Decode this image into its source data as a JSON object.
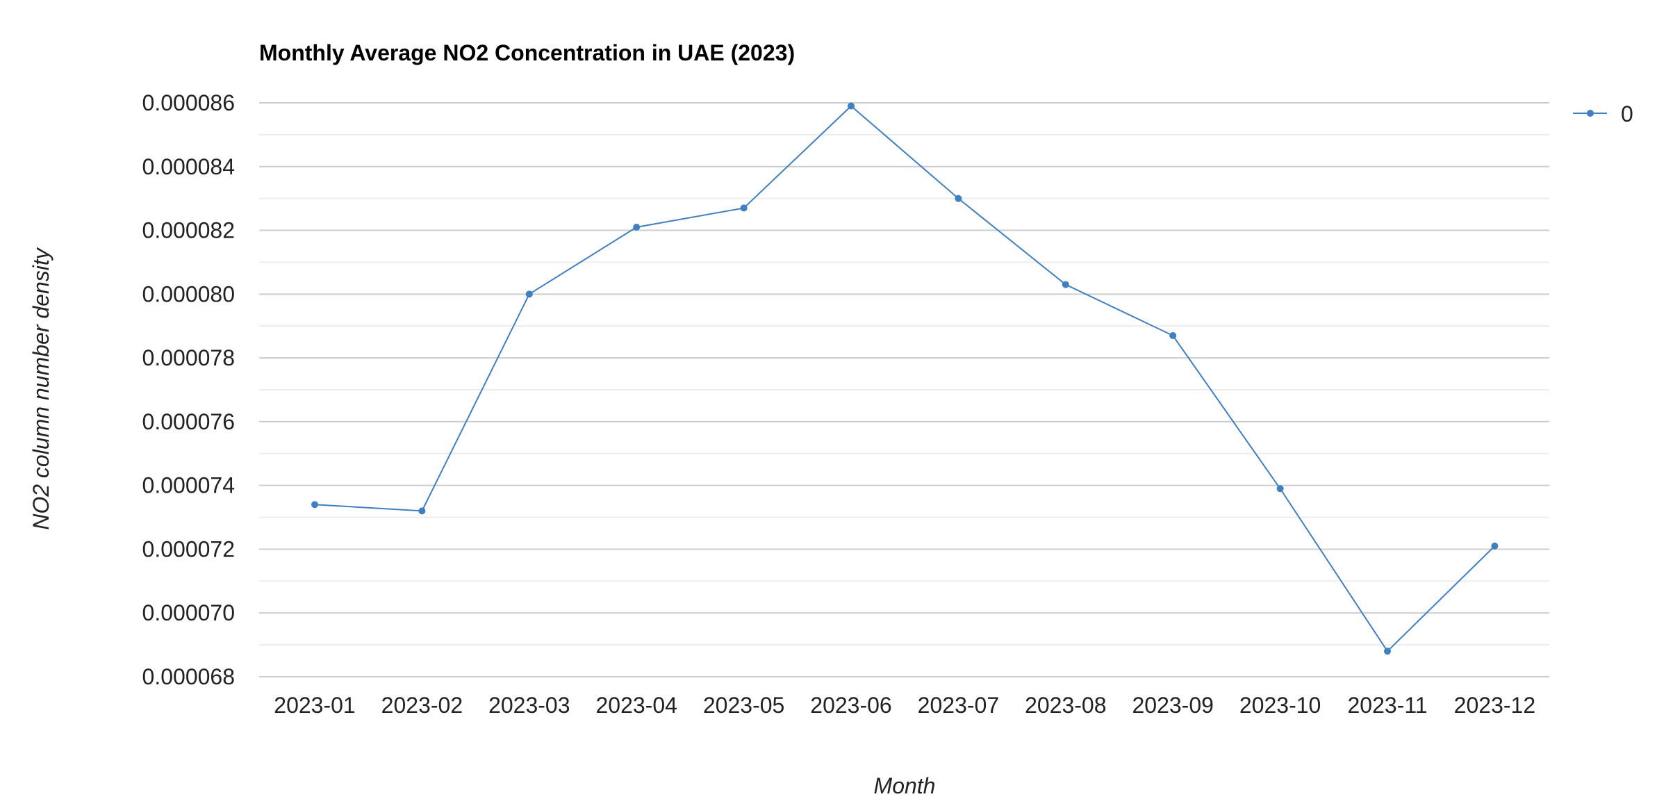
{
  "chart_data": {
    "type": "line",
    "title": "Monthly Average NO2 Concentration in UAE (2023)",
    "xlabel": "Month",
    "ylabel": "NO2 column number density",
    "categories": [
      "2023-01",
      "2023-02",
      "2023-03",
      "2023-04",
      "2023-05",
      "2023-06",
      "2023-07",
      "2023-08",
      "2023-09",
      "2023-10",
      "2023-11",
      "2023-12"
    ],
    "series": [
      {
        "name": "0",
        "color": "#3f7fc2",
        "values": [
          7.34e-05,
          7.32e-05,
          8e-05,
          8.21e-05,
          8.27e-05,
          8.59e-05,
          8.3e-05,
          8.03e-05,
          7.87e-05,
          7.39e-05,
          6.88e-05,
          7.21e-05
        ]
      }
    ],
    "ylim": [
      6.8e-05,
      8.6e-05
    ],
    "yticks": [
      "0.000086",
      "0.000084",
      "0.000082",
      "0.000080",
      "0.000078",
      "0.000076",
      "0.000074",
      "0.000072",
      "0.000070",
      "0.000068"
    ],
    "grid": true,
    "legend_position": "top-right"
  }
}
